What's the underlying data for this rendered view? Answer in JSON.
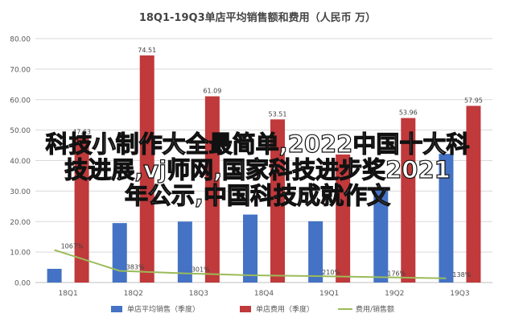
{
  "chart_data": {
    "type": "bar",
    "title": "18Q1-19Q3单店平均销售额和费用（人民币 万）",
    "categories": [
      "18Q1",
      "18Q2",
      "18Q3",
      "18Q4",
      "19Q1",
      "19Q2",
      "19Q3"
    ],
    "ylim": [
      0,
      80
    ],
    "yticks": [
      "0.00",
      "10.00",
      "20.00",
      "30.00",
      "40.00",
      "50.00",
      "60.00",
      "70.00",
      "80.00"
    ],
    "grid": true,
    "legend_position": "bottom",
    "series": [
      {
        "name": "单店平均销售（季度）",
        "kind": "bar",
        "color": "#4472c4",
        "values": [
          4.5,
          19.5,
          20.0,
          22.3,
          20.1,
          30.5,
          42.2
        ],
        "labels": [
          "",
          "",
          "",
          "",
          "",
          "",
          ""
        ]
      },
      {
        "name": "单店费用（季度）",
        "kind": "bar",
        "color": "#c0393b",
        "values": [
          47.63,
          74.51,
          61.09,
          53.51,
          42.0,
          53.96,
          57.95
        ],
        "labels": [
          "47.63",
          "74.51",
          "61.09",
          "53.51",
          "",
          "53.96",
          "57.95"
        ]
      },
      {
        "name": "费用/销售额",
        "kind": "line",
        "color": "#9bbb59",
        "values": [
          10.67,
          3.83,
          3.01,
          2.39,
          2.1,
          1.76,
          1.38
        ],
        "labels": [
          "1067%",
          "383%",
          "301%",
          "",
          "210%",
          "176%",
          "138%"
        ]
      }
    ]
  },
  "overlay_text": {
    "line1": "科技小制作大全最简单,2022中国十大科",
    "line2": "技进展,vj师网,国家科技进步奖2021",
    "line3": "年公示,中国科技成就作文"
  }
}
